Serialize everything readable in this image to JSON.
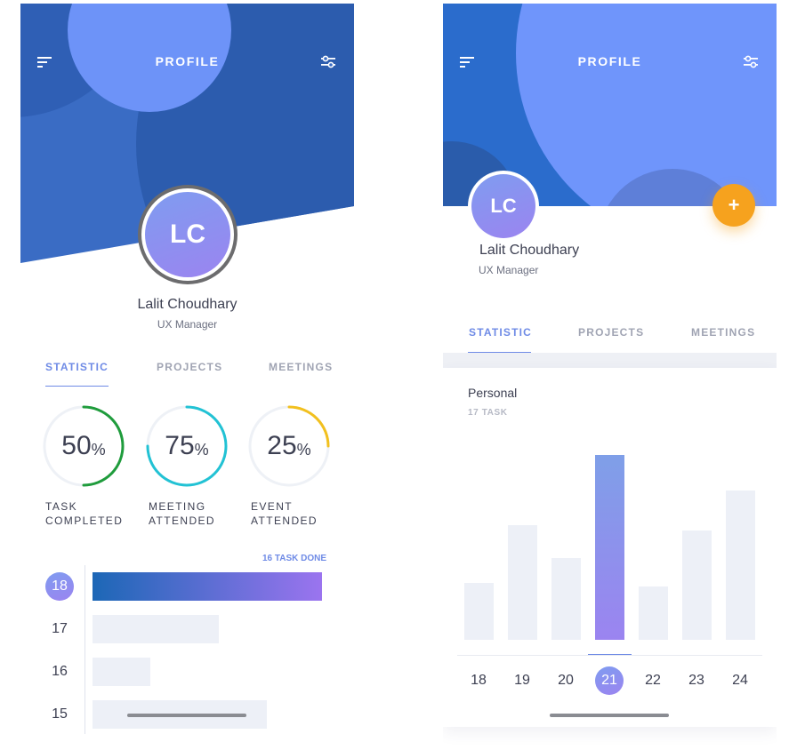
{
  "left": {
    "header": {
      "title": "PROFILE",
      "menu_icon": "menu-icon",
      "filter_icon": "filter-icon"
    },
    "profile": {
      "initials": "LC",
      "name": "Lalit Choudhary",
      "role": "UX Manager"
    },
    "tabs": [
      {
        "label": "STATISTIC",
        "active": true
      },
      {
        "label": "PROJECTS",
        "active": false
      },
      {
        "label": "MEETINGS",
        "active": false
      }
    ],
    "rings": [
      {
        "value": "50",
        "unit": "%",
        "progress": 0.5,
        "color": "#1f9c3c",
        "label_line1": "TASK",
        "label_line2": "COMPLETED"
      },
      {
        "value": "75",
        "unit": "%",
        "progress": 0.75,
        "color": "#22c2d4",
        "label_line1": "MEETING",
        "label_line2": "ATTENDED"
      },
      {
        "value": "25",
        "unit": "%",
        "progress": 0.25,
        "color": "#f2c01e",
        "label_line1": "EVENT",
        "label_line2": "ATTENDED"
      }
    ],
    "tasks": {
      "done_label": "16 TASK DONE",
      "days": [
        {
          "day": "18",
          "fraction": 1.0,
          "selected": true
        },
        {
          "day": "17",
          "fraction": 0.55,
          "selected": false
        },
        {
          "day": "16",
          "fraction": 0.25,
          "selected": false
        },
        {
          "day": "15",
          "fraction": 0.76,
          "selected": false
        }
      ]
    }
  },
  "right": {
    "header": {
      "title": "PROFILE",
      "menu_icon": "menu-icon",
      "filter_icon": "filter-icon",
      "add_icon": "plus-icon"
    },
    "profile": {
      "initials": "LC",
      "name": "Lalit Choudhary",
      "role": "UX Manager"
    },
    "tabs": [
      {
        "label": "STATISTIC",
        "active": true
      },
      {
        "label": "PROJECTS",
        "active": false
      },
      {
        "label": "MEETINGS",
        "active": false
      }
    ],
    "card": {
      "title": "Personal",
      "subtitle": "17 TASK"
    },
    "chart_data": {
      "type": "bar",
      "categories": [
        "18",
        "19",
        "20",
        "21",
        "22",
        "23",
        "24"
      ],
      "values": [
        31,
        62,
        44,
        100,
        29,
        59,
        81
      ],
      "selected": "21",
      "ylim": [
        0,
        100
      ]
    }
  },
  "colors": {
    "accent": "#6f8be6",
    "header_dark": "#2b5cb0",
    "header_light": "#6f95fb",
    "fab": "#f6a21e"
  }
}
